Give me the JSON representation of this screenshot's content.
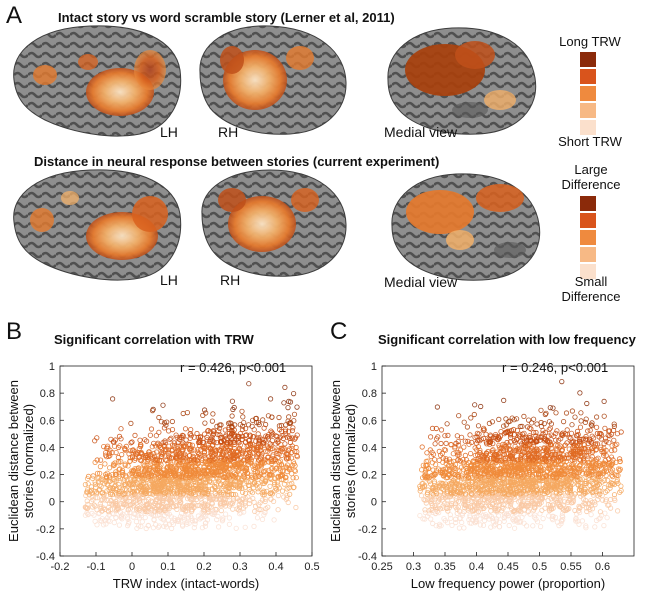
{
  "panel_a": {
    "letter": "A",
    "row1": {
      "title": "Intact story vs word scramble story (Lerner et al, 2011)",
      "labels": {
        "lh": "LH",
        "rh": "RH",
        "medial": "Medial view"
      }
    },
    "row2": {
      "title": "Distance in neural response between stories (current experiment)",
      "labels": {
        "lh": "LH",
        "rh": "RH",
        "medial": "Medial view"
      }
    },
    "colorbar1": {
      "top": "Long TRW",
      "bottom": "Short TRW"
    },
    "colorbar2": {
      "top": "Large Difference",
      "bottom": "Small Difference"
    },
    "colorbar_colors": [
      "#8b2a0a",
      "#d9541c",
      "#ef8a3e",
      "#f7b985",
      "#fbe0cc"
    ],
    "brain_colors": {
      "sulcus": "#4a4a4a",
      "gyrus": "#8e8e8e",
      "activation": [
        "#c0501a",
        "#e57a2e",
        "#f2b06a",
        "#fbe3c4"
      ]
    }
  },
  "chart_data": [
    {
      "type": "scatter",
      "panel": "B",
      "title": "Significant correlation with TRW",
      "annotation": "r = 0.426, p<0.001",
      "xlabel": "TRW index (intact-words)",
      "ylabel": "Euclidean distance between stories (normalized)",
      "xlim": [
        -0.2,
        0.5
      ],
      "ylim": [
        -0.4,
        1
      ],
      "xticks": [
        "-0.2",
        "-0.1",
        "0",
        "0.1",
        "0.2",
        "0.3",
        "0.4",
        "0.5"
      ],
      "yticks": [
        "-0.4",
        "-0.2",
        "0",
        "0.2",
        "0.4",
        "0.6",
        "0.8",
        "1"
      ],
      "r": 0.426,
      "x_range_points": [
        -0.13,
        0.46
      ],
      "y_range_points": [
        -0.2,
        0.9
      ],
      "grid": false
    },
    {
      "type": "scatter",
      "panel": "C",
      "title": "Significant correlation with low frequency",
      "annotation": "r = 0.246, p<0.001",
      "xlabel": "Low frequency power (proportion)",
      "ylabel": "Euclidean distance between stories (normalized)",
      "xlim": [
        0.25,
        0.65
      ],
      "ylim": [
        -0.4,
        1
      ],
      "xticks": [
        "0.25",
        "0.3",
        "0.35",
        "0.4",
        "0.45",
        "0.5",
        "0.55",
        "0.6"
      ],
      "yticks": [
        "-0.4",
        "-0.2",
        "0",
        "0.2",
        "0.4",
        "0.6",
        "0.8",
        "1"
      ],
      "r": 0.246,
      "x_range_points": [
        0.31,
        0.63
      ],
      "y_range_points": [
        -0.2,
        0.9
      ],
      "grid": false
    }
  ],
  "point_colors": [
    "#fbe0d2",
    "#f9c9a4",
    "#f5a860",
    "#f08b3a",
    "#e06a22",
    "#c94f12",
    "#a8400c",
    "#8a2e08"
  ]
}
